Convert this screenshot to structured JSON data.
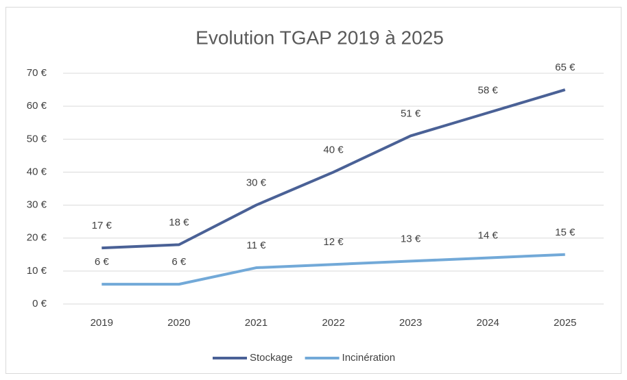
{
  "chart_data": {
    "type": "line",
    "title": "Evolution TGAP 2019 à 2025",
    "categories": [
      "2019",
      "2020",
      "2021",
      "2022",
      "2023",
      "2024",
      "2025"
    ],
    "series": [
      {
        "name": "Stockage",
        "color": "#4a6196",
        "values": [
          17,
          18,
          30,
          40,
          51,
          58,
          65
        ],
        "value_labels": [
          "17 €",
          "18 €",
          "30 €",
          "40 €",
          "51 €",
          "58 €",
          "65 €"
        ]
      },
      {
        "name": "Incinération",
        "color": "#72a9d8",
        "values": [
          6,
          6,
          11,
          12,
          13,
          14,
          15
        ],
        "value_labels": [
          "6 €",
          "6 €",
          "11 €",
          "12 €",
          "13 €",
          "14 €",
          "15 €"
        ]
      }
    ],
    "ylim": [
      0,
      70
    ],
    "yticks": [
      {
        "value": 0,
        "label": "0 €"
      },
      {
        "value": 10,
        "label": "10 €"
      },
      {
        "value": 20,
        "label": "20 €"
      },
      {
        "value": 30,
        "label": "30 €"
      },
      {
        "value": 40,
        "label": "40 €"
      },
      {
        "value": 50,
        "label": "50 €"
      },
      {
        "value": 60,
        "label": "60 €"
      },
      {
        "value": 70,
        "label": "70 €"
      }
    ],
    "grid": true,
    "legend": "bottom"
  }
}
